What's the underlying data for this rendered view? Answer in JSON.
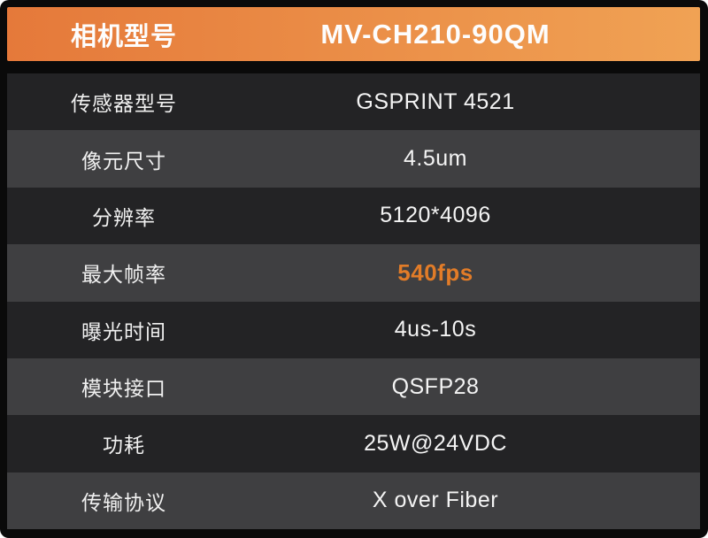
{
  "table": {
    "header": {
      "label": "相机型号",
      "value": "MV-CH210-90QM"
    },
    "rows": [
      {
        "label": "传感器型号",
        "value": "GSPRINT 4521"
      },
      {
        "label": "像元尺寸",
        "value": "4.5um"
      },
      {
        "label": "分辨率",
        "value": "5120*4096"
      },
      {
        "label": "最大帧率",
        "value": "540fps",
        "highlight": true
      },
      {
        "label": "曝光时间",
        "value": "4us-10s"
      },
      {
        "label": "模块接口",
        "value": "QSFP28"
      },
      {
        "label": "功耗",
        "value": "25W@24VDC"
      },
      {
        "label": "传输协议",
        "value": "X over Fiber"
      }
    ],
    "colors": {
      "header_gradient_left": "#e5793a",
      "header_gradient_right": "#f0a254",
      "row_dark": "#232325",
      "row_gray": "#3f3f41",
      "highlight_text": "#e27c28",
      "text": "#f4f4f4",
      "frame": "#0a0a0a"
    }
  }
}
